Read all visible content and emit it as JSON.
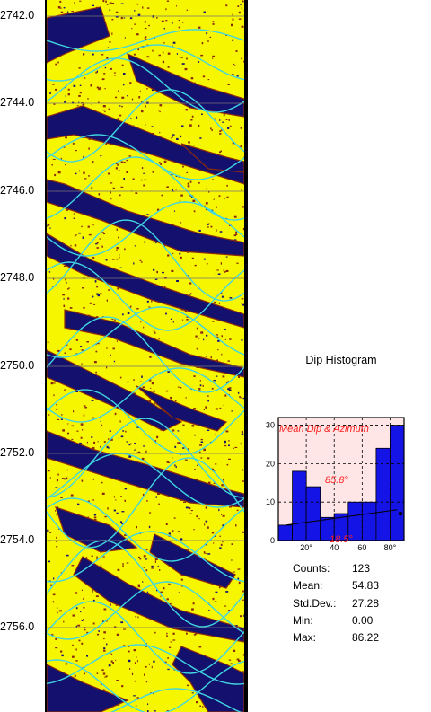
{
  "depth_axis": {
    "labels": [
      "2742.0",
      "2744.0",
      "2746.0",
      "2748.0",
      "2750.0",
      "2752.0",
      "2754.0",
      "2756.0"
    ]
  },
  "image_log": {
    "colors": {
      "background": "#f6f600",
      "dark": "#14106e",
      "brown": "#8a2a0c",
      "sinusoid": "#3fd6e0"
    }
  },
  "histogram": {
    "title": "Dip Histogram",
    "y_ticks": [
      "30",
      "20",
      "10",
      "0"
    ],
    "x_ticks": [
      "20°",
      "40",
      "60",
      "80°"
    ],
    "overlay_title": "Mean Dip & Azimuth",
    "mean_dip_label": "85.8°",
    "azimuth_label": "18.5°",
    "bar_color": "#1414e6",
    "overlay_color": "#ff2020"
  },
  "chart_data": {
    "type": "bar",
    "title": "Dip Histogram",
    "categories": [
      "0-10",
      "10-20",
      "20-30",
      "30-40",
      "40-50",
      "50-60",
      "60-70",
      "70-80",
      "80-90"
    ],
    "values": [
      4,
      18,
      14,
      6,
      7,
      10,
      10,
      24,
      30
    ],
    "ylim": [
      0,
      32
    ],
    "xlim": [
      0,
      90
    ]
  },
  "stats": {
    "rows": [
      {
        "label": "Counts:",
        "value": "123"
      },
      {
        "label": "Mean:",
        "value": "54.83"
      },
      {
        "label": "Std.Dev.:",
        "value": "27.28"
      },
      {
        "label": "Min:",
        "value": "0.00"
      },
      {
        "label": "Max:",
        "value": "86.22"
      }
    ]
  }
}
